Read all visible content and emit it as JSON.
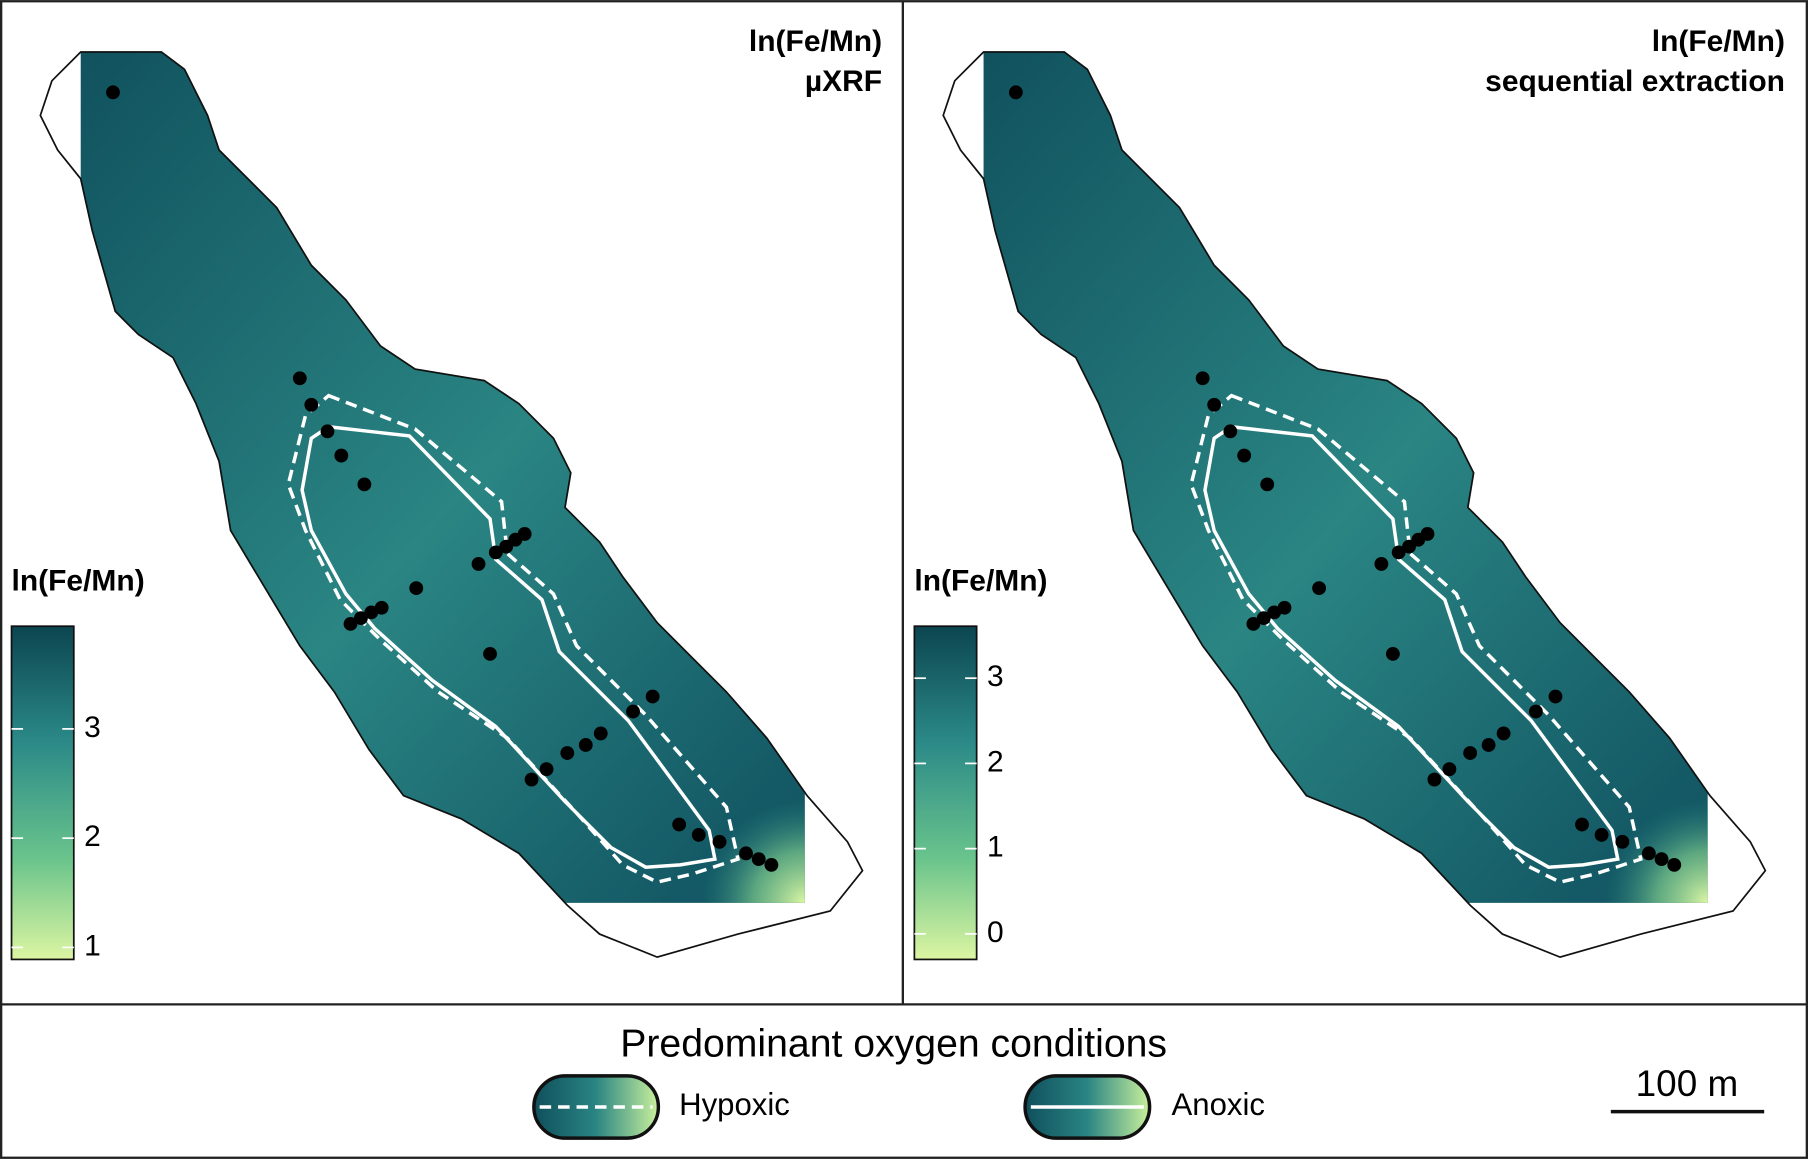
{
  "panels": [
    {
      "title": [
        "ln(Fe/Mn)",
        "µXRF"
      ],
      "colorbar": {
        "title": "ln(Fe/Mn)",
        "range": [
          0.89,
          3.94
        ],
        "ticks": [
          1,
          2,
          3
        ]
      }
    },
    {
      "title": [
        "ln(Fe/Mn)",
        "sequential extraction"
      ],
      "colorbar": {
        "title": "ln(Fe/Mn)",
        "range": [
          -0.3,
          3.61
        ],
        "ticks": [
          0,
          1,
          2,
          3
        ]
      }
    }
  ],
  "legend": {
    "title": "Predominant oxygen conditions",
    "items": [
      "Hypoxic",
      "Anoxic"
    ]
  },
  "scale_bar": "100 m"
}
